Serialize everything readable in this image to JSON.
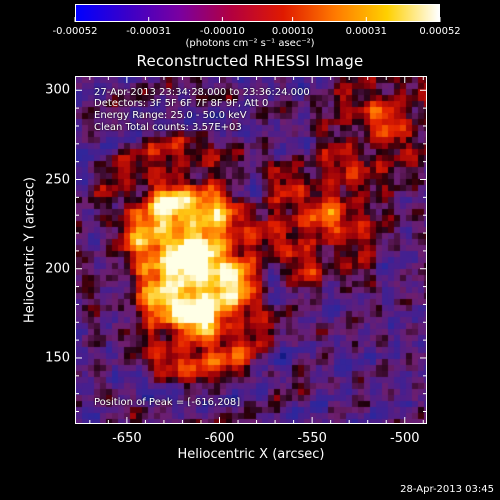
{
  "colorbar": {
    "tick_labels": [
      "-0.00052",
      "-0.00031",
      "-0.00010",
      "0.00010",
      "0.00031",
      "0.00052"
    ],
    "tick_values": [
      -0.00052,
      -0.00031,
      -0.0001,
      0.0001,
      0.00031,
      0.00052
    ],
    "range": [
      -0.00052,
      0.00052
    ],
    "unit_label": "(photons cm⁻² s⁻¹ asec⁻²)",
    "colors": [
      "#0000ff",
      "#3b00c8",
      "#7a00a0",
      "#b3003f",
      "#e01a00",
      "#ff7a00",
      "#ffd000",
      "#ffffff"
    ]
  },
  "title": "Reconstructed RHESSI Image",
  "info": {
    "time_range": "27-Apr-2013 23:34:28.000 to 23:36:24.000",
    "detectors": "Detectors: 3F 5F 6F 7F 8F 9F, Att 0",
    "energy": "Energy Range: 25.0 - 50.0 keV",
    "method_counts": "Clean     Total counts: 3.57E+03"
  },
  "peak": "Position of Peak = [-616,208]",
  "axes": {
    "xlabel": "Heliocentric X (arcsec)",
    "ylabel": "Heliocentric Y (arcsec)",
    "xlim": [
      -678,
      -488
    ],
    "ylim": [
      113,
      308
    ],
    "x_ticks": [
      -650,
      -600,
      -550,
      -500
    ],
    "x_tick_labels": [
      "-650",
      "-600",
      "-550",
      "-500"
    ],
    "y_ticks": [
      150,
      200,
      250,
      300
    ],
    "y_tick_labels": [
      "150",
      "200",
      "250",
      "300"
    ]
  },
  "sources": [
    {
      "x": -616,
      "y": 208,
      "strength": 1.0
    },
    {
      "x": -610,
      "y": 172,
      "strength": 0.85
    },
    {
      "x": -628,
      "y": 240,
      "strength": 0.55
    },
    {
      "x": -545,
      "y": 228,
      "strength": 0.6
    },
    {
      "x": -510,
      "y": 285,
      "strength": 0.5
    }
  ],
  "timestamp": "28-Apr-2013 03:45"
}
